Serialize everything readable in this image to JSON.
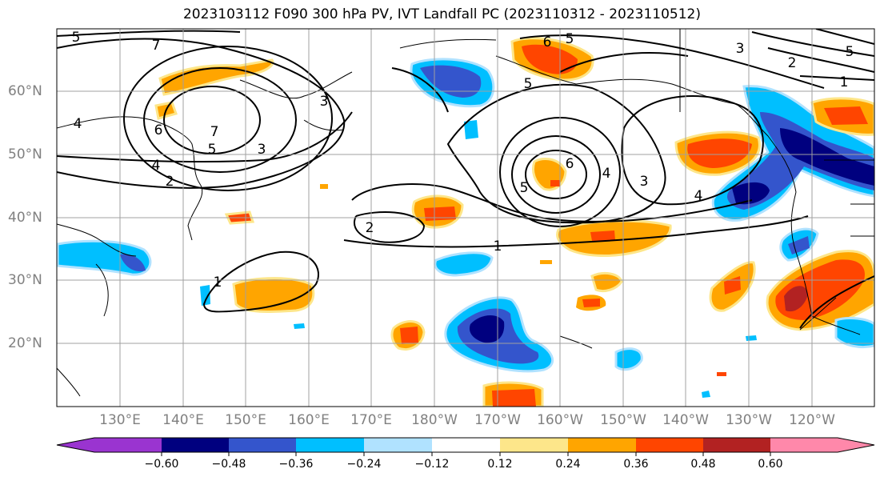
{
  "title": "2023103112 F090 300 hPa PV, IVT Landfall PC (2023110312 - 2023110512)",
  "lat_labels": [
    "60°N",
    "50°N",
    "40°N",
    "30°N",
    "20°N"
  ],
  "lon_labels": [
    "130°E",
    "140°E",
    "150°E",
    "160°E",
    "170°E",
    "180°W",
    "170°W",
    "160°W",
    "150°W",
    "140°W",
    "130°W",
    "120°W"
  ],
  "contour_labels": [
    "5",
    "7",
    "6",
    "4",
    "7",
    "5",
    "3",
    "4",
    "2",
    "3",
    "2",
    "1",
    "6",
    "5",
    "5",
    "6",
    "5",
    "4",
    "3",
    "4",
    "3",
    "2",
    "1",
    "5",
    "1"
  ],
  "colorbar": {
    "ticks": [
      "−0.60",
      "−0.48",
      "−0.36",
      "−0.24",
      "−0.12",
      "0.12",
      "0.24",
      "0.36",
      "0.48",
      "0.60"
    ],
    "colors": [
      "#9a34d0",
      "#00007f",
      "#3455cc",
      "#00bfff",
      "#b0e2ff",
      "#ffffff",
      "#fde68a",
      "#ffa500",
      "#ff4500",
      "#b22222",
      "#ff88aa"
    ]
  }
}
